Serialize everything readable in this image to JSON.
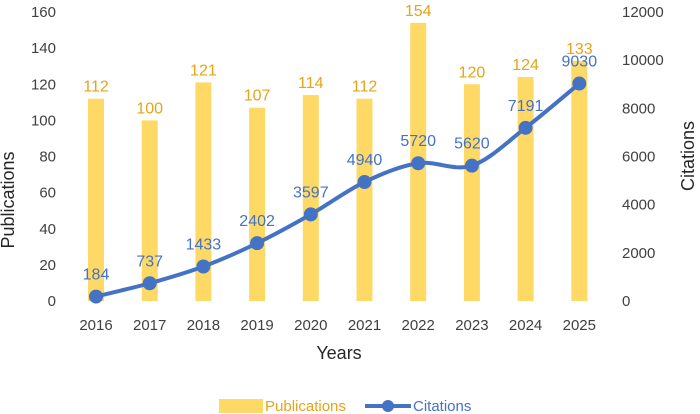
{
  "chart_data": {
    "type": "bar+line",
    "categories": [
      "2016",
      "2017",
      "2018",
      "2019",
      "2020",
      "2021",
      "2022",
      "2023",
      "2024",
      "2025"
    ],
    "series": [
      {
        "name": "Publications",
        "type": "bar",
        "axis": "left",
        "values": [
          112,
          100,
          121,
          107,
          114,
          112,
          154,
          120,
          124,
          133
        ],
        "color": "#FFD966",
        "label_color": "#E6A417"
      },
      {
        "name": "Citations",
        "type": "line",
        "axis": "right",
        "values": [
          184,
          737,
          1433,
          2402,
          3597,
          4940,
          5720,
          5620,
          7191,
          9030
        ],
        "color": "#4472C4",
        "label_color": "#4472C4"
      }
    ],
    "xlabel": "Years",
    "ylabel_left": "Publications",
    "ylabel_right": "Citations",
    "ylim_left": [
      0,
      160
    ],
    "ylim_right": [
      0,
      12000
    ],
    "yticks_left": [
      "0",
      "20",
      "40",
      "60",
      "80",
      "100",
      "120",
      "140",
      "160"
    ],
    "yticks_right": [
      "0",
      "2000",
      "4000",
      "6000",
      "8000",
      "10000",
      "12000"
    ],
    "grid": false,
    "legend_position": "bottom"
  }
}
